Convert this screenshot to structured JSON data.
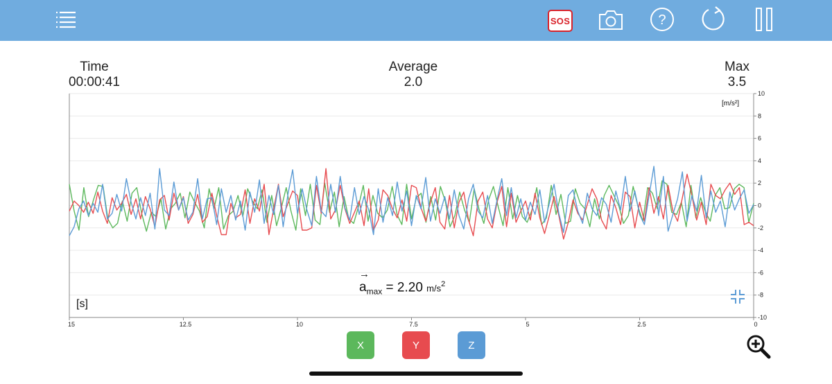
{
  "toolbar": {
    "menu_icon": "list-icon",
    "sos_label": "SOS",
    "camera_icon": "camera-icon",
    "help_icon": "help-circle-icon",
    "refresh_icon": "refresh-icon",
    "pause_icon": "pause-icon"
  },
  "stats": {
    "time_label": "Time",
    "time_value": "00:00:41",
    "average_label": "Average",
    "average_value": "2.0",
    "max_label": "Max",
    "max_value": "3.5"
  },
  "readout": {
    "symbol": "a",
    "subscript": "max",
    "equals_value": "= 2.20",
    "unit": "m/s",
    "unit_power": "2"
  },
  "axis_buttons": {
    "x": "X",
    "y": "Y",
    "z": "Z"
  },
  "colors": {
    "x": "#5cb85c",
    "y": "#e74b4f",
    "z": "#5b9bd5",
    "topbar": "#70acdf"
  },
  "chart_data": {
    "type": "line",
    "xlabel": "[s]",
    "ylabel": "[m/s²]",
    "xlim": [
      15,
      0
    ],
    "ylim": [
      -10,
      10
    ],
    "x_ticks": [
      "15",
      "12.5",
      "10",
      "7.5",
      "5",
      "2.5",
      "0"
    ],
    "y_ticks": [
      "10",
      "8",
      "6",
      "4",
      "2",
      "0",
      "-2",
      "-4",
      "-6",
      "-8",
      "-10"
    ],
    "grid": true,
    "series": [
      {
        "name": "X",
        "color": "#5cb85c",
        "values": [
          1.9,
          -0.5,
          -2.2,
          1.6,
          -1.0,
          0.5,
          1.8,
          1.7,
          -1.2,
          -2.0,
          -1.6,
          0.4,
          -1.4,
          1.1,
          1.6,
          -0.7,
          -2.3,
          -0.6,
          -1.0,
          0.6,
          -2.1,
          -0.3,
          0.2,
          1.1,
          -1.1,
          1.2,
          0.3,
          -0.5,
          -2.0,
          1.5,
          -0.3,
          1.6,
          -2.1,
          -0.9,
          -0.5,
          0.9,
          -1.0,
          1.5,
          0.4,
          -0.3,
          1.4,
          -1.5,
          0.9,
          -1.8,
          -0.2,
          1.6,
          -0.5,
          -2.2,
          1.5,
          -0.9,
          1.9,
          -1.3,
          -1.7,
          2.0,
          -0.6,
          1.2,
          -1.9,
          0.8,
          -1.2,
          -1.6,
          -0.1,
          1.8,
          -1.4,
          0.9,
          -0.7,
          -1.1,
          -0.4,
          1.7,
          -0.8,
          -1.7,
          1.9,
          -1.2,
          0.7,
          1.1,
          -1.5,
          0.8,
          -1.3,
          1.7,
          0.4,
          -1.9,
          -0.9,
          1.2,
          -0.4,
          -1.5,
          1.5,
          -0.3,
          -1.6,
          0.5,
          1.7,
          -0.1,
          -1.8,
          1.6,
          -1.2,
          0.9,
          -1.0,
          -1.5,
          -0.4,
          1.6,
          -1.7,
          -1.1,
          1.8,
          -0.8,
          1.0,
          -1.6,
          -1.4,
          1.5,
          0.2,
          -0.3,
          -1.9,
          0.6,
          -1.2,
          0.9,
          1.8,
          0.9,
          0.0,
          -1.6,
          -0.9,
          1.7,
          -0.1,
          -1.4,
          1.6,
          1.1,
          -0.3,
          2.2,
          1.9,
          -0.6,
          -0.8,
          0.3,
          -1.9,
          1.8,
          -1.1,
          0.7,
          -0.6,
          -1.4,
          0.9,
          1.6,
          -0.3,
          -0.2,
          1.5,
          1.9,
          1.6,
          -1.5,
          0.2
        ]
      },
      {
        "name": "Y",
        "color": "#e74b4f",
        "values": [
          -0.5,
          0.4,
          0.0,
          -0.6,
          0.3,
          -0.7,
          1.2,
          -0.5,
          -1.6,
          0.7,
          -0.4,
          0.2,
          1.0,
          -0.8,
          0.6,
          -1.2,
          0.8,
          -0.3,
          -1.9,
          0.5,
          0.9,
          -1.3,
          1.1,
          -0.4,
          0.8,
          -1.6,
          -0.8,
          1.0,
          -1.5,
          -1.0,
          1.1,
          -0.9,
          -2.6,
          -2.6,
          0.2,
          -1.1,
          -0.8,
          1.4,
          -1.6,
          0.6,
          -0.5,
          1.9,
          -2.6,
          -0.3,
          1.9,
          -1.0,
          0.2,
          1.3,
          0.9,
          -2.2,
          -2.2,
          -2.0,
          1.8,
          -0.7,
          3.3,
          -1.2,
          -0.4,
          1.8,
          -0.3,
          -1.6,
          -0.6,
          0.4,
          -1.8,
          1.5,
          -2.2,
          -1.3,
          1.4,
          0.9,
          -0.3,
          -1.1,
          0.5,
          -1.4,
          1.8,
          1.6,
          -0.2,
          -1.4,
          0.3,
          1.6,
          -1.5,
          -2.1,
          0.9,
          -2.0,
          0.3,
          1.2,
          -1.3,
          -2.7,
          0.4,
          1.2,
          -1.2,
          -2.0,
          0.3,
          1.7,
          -1.9,
          1.1,
          -1.5,
          -0.5,
          0.4,
          -1.3,
          1.1,
          -1.1,
          -2.5,
          -0.9,
          0.8,
          -0.9,
          -3.0,
          -1.5,
          0.5,
          -0.7,
          -1.3,
          0.1,
          1.5,
          0.6,
          -1.3,
          -2.1,
          0.9,
          -0.2,
          -1.7,
          1.2,
          0.8,
          -2.0,
          0.3,
          -1.4,
          1.6,
          -0.7,
          0.8,
          -1.2,
          1.8,
          -0.5,
          -1.4,
          0.7,
          2.8,
          0.9,
          -1.3,
          0.3,
          -1.7,
          1.9,
          0.9,
          0.6,
          1.4,
          2.0,
          1.0,
          1.6,
          -1.7,
          -1.5,
          -1.8
        ]
      },
      {
        "name": "Z",
        "color": "#5b9bd5",
        "values": [
          -2.7,
          -1.9,
          -0.3,
          0.4,
          -0.9,
          0.2,
          -0.6,
          1.9,
          -1.2,
          -0.7,
          1.0,
          -0.5,
          2.4,
          0.3,
          -1.2,
          0.7,
          -0.9,
          1.1,
          -2.1,
          3.3,
          -0.4,
          -0.9,
          2.1,
          -0.4,
          0.7,
          -1.3,
          -0.6,
          2.4,
          -1.2,
          0.6,
          0.7,
          -1.7,
          1.5,
          -0.6,
          0.9,
          -1.3,
          0.4,
          -2.2,
          1.2,
          -0.6,
          2.3,
          -1.6,
          0.9,
          -0.8,
          1.8,
          -1.9,
          1.0,
          3.2,
          -0.7,
          1.5,
          -0.4,
          -1.8,
          2.6,
          -0.5,
          -1.0,
          1.9,
          -0.6,
          2.6,
          -0.2,
          -1.3,
          1.6,
          -0.8,
          0.8,
          -0.4,
          -2.6,
          1.5,
          -1.5,
          0.7,
          -0.9,
          2.1,
          -0.5,
          1.3,
          -1.8,
          0.9,
          -0.3,
          2.5,
          -1.4,
          0.6,
          -0.7,
          0.8,
          -1.2,
          1.4,
          -0.9,
          -2.1,
          0.6,
          1.9,
          -0.5,
          -1.1,
          0.9,
          -1.6,
          0.5,
          2.4,
          -0.9,
          1.6,
          -1.1,
          0.6,
          -1.3,
          0.3,
          -0.8,
          1.4,
          -1.5,
          0.2,
          1.9,
          -0.7,
          -2.4,
          0.9,
          1.4,
          -0.5,
          -1.6,
          1.1,
          -0.3,
          -0.9,
          0.7,
          0.1,
          -1.5,
          1.3,
          -0.4,
          2.6,
          -0.5,
          1.3,
          -0.8,
          -1.7,
          0.9,
          3.5,
          -0.9,
          2.6,
          -2.3,
          -0.8,
          0.6,
          3.0,
          -1.4,
          0.9,
          -0.5,
          2.7,
          -1.1,
          1.3,
          -0.6,
          0.4,
          -1.9,
          1.2,
          -0.4,
          0.6,
          1.4,
          -0.7,
          0.1
        ]
      }
    ]
  }
}
